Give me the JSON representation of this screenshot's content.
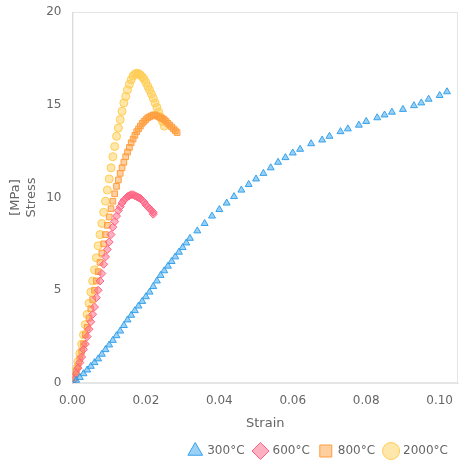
{
  "chart_data": {
    "type": "scatter",
    "xlabel": "Strain",
    "ylabel": "[MPa]\nStress",
    "xlim": [
      0,
      0.105
    ],
    "ylim": [
      0,
      20
    ],
    "xticks": [
      {
        "value": 0,
        "label": "0.00"
      },
      {
        "value": 0.02,
        "label": "0.02"
      },
      {
        "value": 0.04,
        "label": "0.04"
      },
      {
        "value": 0.06,
        "label": "0.06"
      },
      {
        "value": 0.08,
        "label": "0.08"
      },
      {
        "value": 0.1,
        "label": "0.10"
      }
    ],
    "yticks": [
      0,
      5,
      10,
      15,
      20
    ],
    "grid": false,
    "legend": "lower right",
    "series": [
      {
        "name": "300°C",
        "marker": "triangle",
        "x": [
          0.001,
          0.002,
          0.003,
          0.004,
          0.005,
          0.006,
          0.007,
          0.008,
          0.009,
          0.01,
          0.011,
          0.012,
          0.013,
          0.014,
          0.015,
          0.016,
          0.017,
          0.018,
          0.019,
          0.02,
          0.021,
          0.022,
          0.023,
          0.024,
          0.025,
          0.026,
          0.027,
          0.028,
          0.029,
          0.03,
          0.031,
          0.032,
          0.034,
          0.036,
          0.038,
          0.04,
          0.042,
          0.044,
          0.046,
          0.048,
          0.05,
          0.052,
          0.054,
          0.056,
          0.058,
          0.06,
          0.062,
          0.065,
          0.068,
          0.07,
          0.073,
          0.075,
          0.078,
          0.08,
          0.083,
          0.085,
          0.087,
          0.09,
          0.093,
          0.095,
          0.097,
          0.1,
          0.102
        ],
        "values": [
          0.15,
          0.3,
          0.5,
          0.7,
          0.9,
          1.1,
          1.3,
          1.55,
          1.8,
          2.05,
          2.3,
          2.55,
          2.8,
          3.1,
          3.4,
          3.65,
          3.9,
          4.15,
          4.4,
          4.65,
          4.9,
          5.2,
          5.5,
          5.8,
          6.05,
          6.3,
          6.55,
          6.8,
          7.05,
          7.3,
          7.55,
          7.8,
          8.2,
          8.6,
          9.0,
          9.35,
          9.7,
          10.05,
          10.4,
          10.7,
          11.0,
          11.3,
          11.6,
          11.9,
          12.15,
          12.4,
          12.6,
          12.9,
          13.1,
          13.3,
          13.55,
          13.7,
          13.9,
          14.1,
          14.3,
          14.45,
          14.6,
          14.75,
          14.95,
          15.1,
          15.3,
          15.5,
          15.7
        ]
      },
      {
        "name": "600°C",
        "marker": "diamond",
        "x": [
          0.0005,
          0.001,
          0.0015,
          0.002,
          0.0025,
          0.003,
          0.0035,
          0.004,
          0.0045,
          0.005,
          0.0055,
          0.006,
          0.0065,
          0.007,
          0.0075,
          0.008,
          0.0085,
          0.009,
          0.0095,
          0.01,
          0.0105,
          0.011,
          0.0115,
          0.012,
          0.0125,
          0.013,
          0.0135,
          0.014,
          0.0145,
          0.015,
          0.0155,
          0.016,
          0.0165,
          0.017,
          0.0175,
          0.018,
          0.0185,
          0.019,
          0.0195,
          0.02,
          0.0205,
          0.021,
          0.0215,
          0.022,
          0.022
        ],
        "values": [
          0.2,
          0.5,
          0.8,
          1.1,
          1.4,
          1.8,
          2.1,
          2.5,
          2.9,
          3.3,
          3.7,
          4.1,
          4.6,
          5.0,
          5.5,
          5.9,
          6.4,
          6.8,
          7.2,
          7.6,
          8.0,
          8.4,
          8.7,
          9.0,
          9.3,
          9.5,
          9.7,
          9.85,
          9.95,
          10.05,
          10.1,
          10.15,
          10.15,
          10.1,
          10.05,
          10.0,
          9.95,
          9.85,
          9.75,
          9.6,
          9.5,
          9.4,
          9.3,
          9.2,
          9.1
        ]
      },
      {
        "name": "800°C",
        "marker": "square",
        "x": [
          0.0005,
          0.001,
          0.0015,
          0.002,
          0.0025,
          0.003,
          0.0035,
          0.004,
          0.0045,
          0.005,
          0.0055,
          0.006,
          0.0065,
          0.007,
          0.0075,
          0.008,
          0.0085,
          0.009,
          0.0095,
          0.01,
          0.0105,
          0.011,
          0.0115,
          0.012,
          0.0125,
          0.013,
          0.0135,
          0.014,
          0.0145,
          0.015,
          0.0155,
          0.016,
          0.0165,
          0.017,
          0.0175,
          0.018,
          0.0185,
          0.019,
          0.0195,
          0.02,
          0.0205,
          0.021,
          0.0215,
          0.022,
          0.0225,
          0.023,
          0.0235,
          0.024,
          0.0245,
          0.025,
          0.0255,
          0.026,
          0.0265,
          0.027,
          0.0275,
          0.028,
          0.0285
        ],
        "values": [
          0.3,
          0.6,
          0.9,
          1.3,
          1.7,
          2.1,
          2.6,
          3.0,
          3.5,
          4.0,
          4.5,
          5.0,
          5.5,
          6.0,
          6.5,
          7.0,
          7.5,
          8.0,
          8.5,
          8.95,
          9.4,
          9.8,
          10.2,
          10.6,
          10.95,
          11.3,
          11.6,
          11.9,
          12.2,
          12.45,
          12.7,
          12.95,
          13.15,
          13.35,
          13.55,
          13.7,
          13.85,
          14.0,
          14.1,
          14.2,
          14.3,
          14.35,
          14.4,
          14.45,
          14.45,
          14.4,
          14.35,
          14.3,
          14.25,
          14.2,
          14.1,
          14.0,
          13.9,
          13.8,
          13.7,
          13.6,
          13.5
        ]
      },
      {
        "name": "2000°C",
        "marker": "circle",
        "x": [
          0.0005,
          0.001,
          0.0015,
          0.002,
          0.0025,
          0.003,
          0.0035,
          0.004,
          0.0045,
          0.005,
          0.0055,
          0.006,
          0.0065,
          0.007,
          0.0075,
          0.008,
          0.0085,
          0.009,
          0.0095,
          0.01,
          0.0105,
          0.011,
          0.0115,
          0.012,
          0.0125,
          0.013,
          0.0135,
          0.014,
          0.0145,
          0.015,
          0.0155,
          0.016,
          0.0165,
          0.017,
          0.0175,
          0.018,
          0.0185,
          0.019,
          0.0195,
          0.02,
          0.0205,
          0.021,
          0.0215,
          0.022,
          0.0225,
          0.023,
          0.0235,
          0.024,
          0.0245,
          0.025
        ],
        "values": [
          0.35,
          0.75,
          1.15,
          1.6,
          2.1,
          2.6,
          3.15,
          3.7,
          4.3,
          4.9,
          5.5,
          6.1,
          6.75,
          7.4,
          8.0,
          8.6,
          9.2,
          9.8,
          10.4,
          11.0,
          11.6,
          12.2,
          12.75,
          13.3,
          13.75,
          14.2,
          14.65,
          15.1,
          15.45,
          15.8,
          16.1,
          16.35,
          16.55,
          16.65,
          16.7,
          16.68,
          16.6,
          16.5,
          16.38,
          16.2,
          16.0,
          15.8,
          15.58,
          15.35,
          15.1,
          14.85,
          14.6,
          14.35,
          14.1,
          13.85
        ]
      }
    ]
  }
}
